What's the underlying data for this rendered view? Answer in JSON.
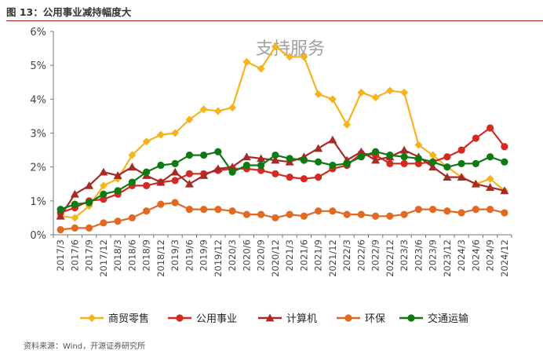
{
  "caption": {
    "title": "图 13：公用事业减持幅度大"
  },
  "footer": {
    "source": "资料来源：Wind，开源证券研究所"
  },
  "chart_data": {
    "type": "line",
    "title": "",
    "xlabel": "",
    "ylabel": "",
    "ylim": [
      0,
      6
    ],
    "yticks": [
      "0%",
      "1%",
      "2%",
      "3%",
      "4%",
      "5%",
      "6%"
    ],
    "grid": false,
    "legend_position": "bottom",
    "watermark": "支持服务",
    "categories": [
      "2017/3",
      "2017/6",
      "2017/9",
      "2017/12",
      "2018/3",
      "2018/6",
      "2018/9",
      "2018/12",
      "2019/3",
      "2019/6",
      "2019/9",
      "2019/12",
      "2020/3",
      "2020/6",
      "2020/9",
      "2020/12",
      "2021/3",
      "2021/6",
      "2021/9",
      "2021/12",
      "2022/3",
      "2022/6",
      "2022/9",
      "2022/12",
      "2023/3",
      "2023/6",
      "2023/9",
      "2023/12",
      "2024/3",
      "2024/6",
      "2024/9",
      "2024/12"
    ],
    "series": [
      {
        "name": "商贸零售",
        "color": "#f5b41e",
        "marker": "diamond",
        "values": [
          0.55,
          0.5,
          0.85,
          1.45,
          1.65,
          2.35,
          2.75,
          2.95,
          3.0,
          3.4,
          3.7,
          3.65,
          3.75,
          5.1,
          4.9,
          5.55,
          5.25,
          5.25,
          4.15,
          4.0,
          3.25,
          4.2,
          4.05,
          4.25,
          4.2,
          2.65,
          2.35,
          2.0,
          1.7,
          1.5,
          1.65,
          1.3
        ]
      },
      {
        "name": "公用事业",
        "color": "#d52a21",
        "marker": "circle",
        "values": [
          0.65,
          0.8,
          1.0,
          1.05,
          1.2,
          1.45,
          1.45,
          1.55,
          1.6,
          1.8,
          1.8,
          1.9,
          1.95,
          1.95,
          1.9,
          1.8,
          1.7,
          1.65,
          1.7,
          1.95,
          2.05,
          2.4,
          2.35,
          2.1,
          2.1,
          2.1,
          2.15,
          2.3,
          2.5,
          2.85,
          3.15,
          2.6
        ]
      },
      {
        "name": "计算机",
        "color": "#a62b26",
        "marker": "triangle",
        "values": [
          0.55,
          1.2,
          1.45,
          1.85,
          1.75,
          2.0,
          1.75,
          1.55,
          1.85,
          1.5,
          1.75,
          1.95,
          2.0,
          2.3,
          2.25,
          2.2,
          2.15,
          2.3,
          2.55,
          2.8,
          2.2,
          2.45,
          2.2,
          2.3,
          2.5,
          2.3,
          2.0,
          1.7,
          1.7,
          1.5,
          1.4,
          1.3
        ]
      },
      {
        "name": "环保",
        "color": "#e06a22",
        "marker": "circle",
        "values": [
          0.15,
          0.2,
          0.2,
          0.35,
          0.4,
          0.5,
          0.7,
          0.9,
          0.95,
          0.75,
          0.75,
          0.75,
          0.7,
          0.6,
          0.6,
          0.5,
          0.6,
          0.55,
          0.7,
          0.7,
          0.6,
          0.6,
          0.55,
          0.55,
          0.6,
          0.75,
          0.75,
          0.7,
          0.65,
          0.75,
          0.75,
          0.65
        ]
      },
      {
        "name": "交通运输",
        "color": "#0d7a12",
        "marker": "circle",
        "values": [
          0.75,
          0.9,
          0.95,
          1.2,
          1.3,
          1.55,
          1.85,
          2.05,
          2.1,
          2.35,
          2.35,
          2.45,
          1.85,
          2.05,
          2.05,
          2.35,
          2.25,
          2.2,
          2.15,
          2.05,
          2.1,
          2.3,
          2.45,
          2.35,
          2.3,
          2.25,
          2.15,
          2.0,
          2.1,
          2.1,
          2.3,
          2.15
        ]
      }
    ]
  }
}
